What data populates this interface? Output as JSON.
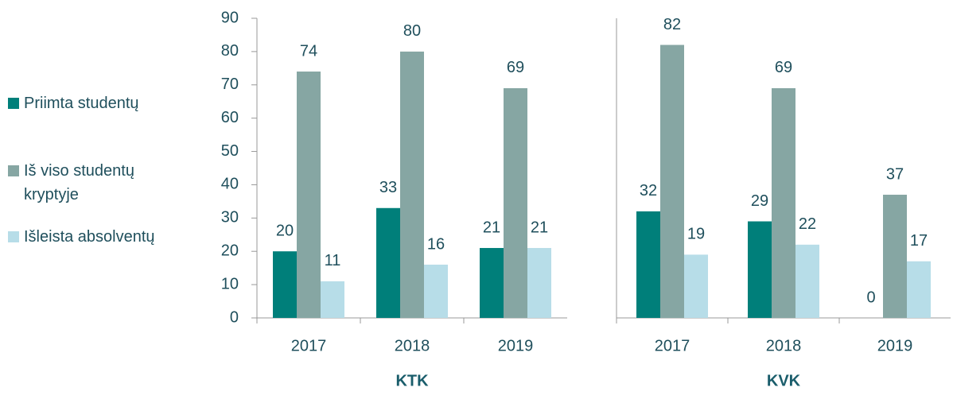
{
  "chart_data": {
    "type": "bar",
    "ylim": [
      0,
      90
    ],
    "yticks": [
      0,
      10,
      20,
      30,
      40,
      50,
      60,
      70,
      80,
      90
    ],
    "groups": [
      {
        "label": "KTK",
        "categories": [
          "2017",
          "2018",
          "2019"
        ]
      },
      {
        "label": "KVK",
        "categories": [
          "2017",
          "2018",
          "2019"
        ]
      }
    ],
    "series": [
      {
        "name": "Priimta studentų",
        "color": "#007f7a",
        "values": [
          [
            20,
            33,
            21
          ],
          [
            32,
            29,
            0
          ]
        ]
      },
      {
        "name": "Iš viso studentų kryptyje",
        "color": "#86a6a3",
        "values": [
          [
            74,
            80,
            69
          ],
          [
            82,
            69,
            37
          ]
        ]
      },
      {
        "name": "Išleista absolventų",
        "color": "#b7dde8",
        "values": [
          [
            11,
            16,
            21
          ],
          [
            19,
            22,
            17
          ]
        ]
      }
    ],
    "legend": "left"
  }
}
